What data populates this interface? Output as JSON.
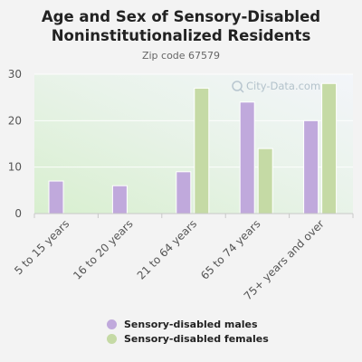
{
  "title_line1": "Age and Sex of Sensory-Disabled",
  "title_line2": "Noninstitutionalized Residents",
  "subtitle": "Zip code 67579",
  "watermark": "City-Data.com",
  "colors": {
    "males": "#c0a9dc",
    "females": "#c5daa5",
    "axis_text": "#555555"
  },
  "chart_data": {
    "type": "bar",
    "title": "Age and Sex of Sensory-Disabled Noninstitutionalized Residents",
    "subtitle": "Zip code 67579",
    "categories": [
      "5 to 15 years",
      "16 to 20 years",
      "21 to 64 years",
      "65 to 74 years",
      "75+ years and over"
    ],
    "series": [
      {
        "name": "Sensory-disabled males",
        "values": [
          7,
          6,
          9,
          24,
          20
        ]
      },
      {
        "name": "Sensory-disabled females",
        "values": [
          0,
          0,
          27,
          14,
          28
        ]
      }
    ],
    "yticks": [
      0,
      10,
      20,
      30
    ],
    "ylim": [
      0,
      30
    ],
    "grid": true,
    "legend": "bottom"
  }
}
